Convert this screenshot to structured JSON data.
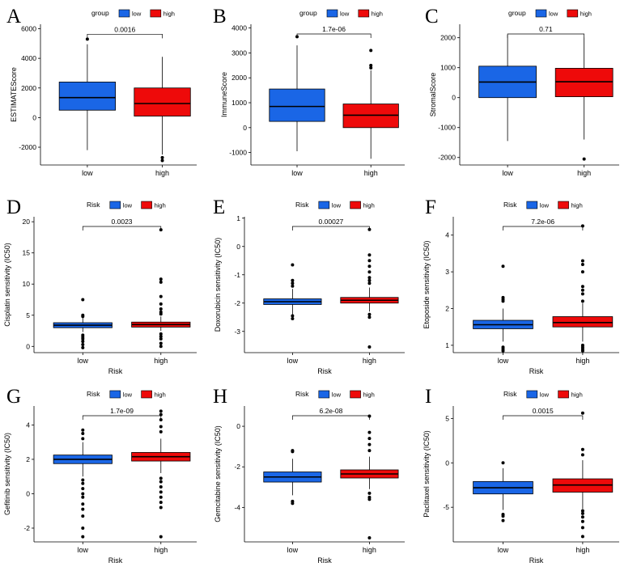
{
  "figure": {
    "colors": {
      "low": "#1a66e6",
      "high": "#ee0a0a",
      "axis": "#000000"
    },
    "legend_labels": [
      "low",
      "high"
    ],
    "categories": [
      "low",
      "high"
    ]
  },
  "chart_data": [
    {
      "type": "box",
      "panel": "A",
      "legend_title": "group",
      "ylabel": "ESTIMATEScore",
      "xlabel": "",
      "categories": [
        "low",
        "high"
      ],
      "yticks": [
        -2000,
        0,
        2000,
        4000,
        6000
      ],
      "ylim": [
        -3200,
        6300
      ],
      "p_value": "0.0016",
      "boxes": [
        {
          "name": "low",
          "q1": 500,
          "median": 1350,
          "q3": 2400,
          "whisker_low": -2200,
          "whisker_high": 4950,
          "outliers": [
            5300
          ]
        },
        {
          "name": "high",
          "q1": 100,
          "median": 950,
          "q3": 2000,
          "whisker_low": -2500,
          "whisker_high": 4100,
          "outliers": [
            -2700,
            -2900
          ]
        }
      ]
    },
    {
      "type": "box",
      "panel": "B",
      "legend_title": "group",
      "ylabel": "ImmuneScore",
      "xlabel": "",
      "categories": [
        "low",
        "high"
      ],
      "yticks": [
        -1000,
        0,
        1000,
        2000,
        3000,
        4000
      ],
      "ylim": [
        -1500,
        4150
      ],
      "p_value": "1.7e-06",
      "boxes": [
        {
          "name": "low",
          "q1": 250,
          "median": 850,
          "q3": 1550,
          "whisker_low": -950,
          "whisker_high": 3300,
          "outliers": [
            3650
          ]
        },
        {
          "name": "high",
          "q1": 0,
          "median": 500,
          "q3": 950,
          "whisker_low": -1250,
          "whisker_high": 2300,
          "outliers": [
            2400,
            2500,
            3100
          ]
        }
      ]
    },
    {
      "type": "box",
      "panel": "C",
      "legend_title": "group",
      "ylabel": "StromalScore",
      "xlabel": "",
      "categories": [
        "low",
        "high"
      ],
      "yticks": [
        -2000,
        -1000,
        0,
        1000,
        2000
      ],
      "ylim": [
        -2250,
        2450
      ],
      "p_value": "0.71",
      "boxes": [
        {
          "name": "low",
          "q1": 0,
          "median": 520,
          "q3": 1050,
          "whisker_low": -1450,
          "whisker_high": 2100,
          "outliers": []
        },
        {
          "name": "high",
          "q1": 30,
          "median": 530,
          "q3": 980,
          "whisker_low": -1400,
          "whisker_high": 2000,
          "outliers": [
            -2050
          ]
        }
      ]
    },
    {
      "type": "box",
      "panel": "D",
      "legend_title": "Risk",
      "ylabel": "Cisplatin sensitivity (IC50)",
      "xlabel": "Risk",
      "categories": [
        "low",
        "high"
      ],
      "yticks": [
        0,
        5,
        10,
        15,
        20
      ],
      "ylim": [
        -1,
        20.8
      ],
      "p_value": "0.0023",
      "boxes": [
        {
          "name": "low",
          "q1": 3.0,
          "median": 3.4,
          "q3": 3.8,
          "whisker_low": 2.3,
          "whisker_high": 4.6,
          "outliers": [
            7.5,
            5.0,
            4.8,
            1.8,
            1.5,
            1.2,
            0.8,
            0.3,
            -0.2
          ]
        },
        {
          "name": "high",
          "q1": 3.1,
          "median": 3.5,
          "q3": 3.9,
          "whisker_low": 2.5,
          "whisker_high": 4.8,
          "outliers": [
            18.7,
            10.8,
            10.3,
            8.0,
            6.8,
            6.0,
            5.5,
            5.2,
            2.0,
            1.6,
            1.2,
            0.5,
            0.0
          ]
        }
      ]
    },
    {
      "type": "box",
      "panel": "E",
      "legend_title": "Risk",
      "ylabel": "Doxorubicin sensitivity (IC50)",
      "xlabel": "Risk",
      "categories": [
        "low",
        "high"
      ],
      "yticks": [
        -3,
        -2,
        -1,
        0,
        1
      ],
      "ylim": [
        -3.75,
        1.05
      ],
      "p_value": "0.00027",
      "boxes": [
        {
          "name": "low",
          "q1": -2.05,
          "median": -1.95,
          "q3": -1.85,
          "whisker_low": -2.4,
          "whisker_high": -1.5,
          "outliers": [
            -0.65,
            -1.2,
            -1.3,
            -1.4,
            -2.45,
            -2.55
          ]
        },
        {
          "name": "high",
          "q1": -2.0,
          "median": -1.9,
          "q3": -1.8,
          "whisker_low": -2.3,
          "whisker_high": -1.45,
          "outliers": [
            0.6,
            -0.3,
            -0.5,
            -0.7,
            -0.9,
            -1.1,
            -1.2,
            -1.3,
            -2.4,
            -2.5,
            -3.55
          ]
        }
      ]
    },
    {
      "type": "box",
      "panel": "F",
      "legend_title": "Risk",
      "ylabel": "Etoposide sensitivity (IC50)",
      "xlabel": "Risk",
      "categories": [
        "low",
        "high"
      ],
      "yticks": [
        1,
        2,
        3,
        4
      ],
      "ylim": [
        0.8,
        4.5
      ],
      "p_value": "7.2e-06",
      "boxes": [
        {
          "name": "low",
          "q1": 1.45,
          "median": 1.56,
          "q3": 1.68,
          "whisker_low": 1.1,
          "whisker_high": 2.0,
          "outliers": [
            3.15,
            2.3,
            2.25,
            2.2,
            0.95,
            0.9,
            0.85
          ]
        },
        {
          "name": "high",
          "q1": 1.5,
          "median": 1.62,
          "q3": 1.78,
          "whisker_low": 1.1,
          "whisker_high": 2.15,
          "outliers": [
            4.25,
            3.3,
            3.2,
            3.0,
            2.6,
            2.5,
            2.4,
            2.2,
            1.0,
            0.95,
            0.9,
            0.85
          ]
        }
      ]
    },
    {
      "type": "box",
      "panel": "G",
      "legend_title": "Risk",
      "ylabel": "Gefitinib sensitivity (IC50)",
      "xlabel": "Risk",
      "categories": [
        "low",
        "high"
      ],
      "yticks": [
        -2,
        0,
        2,
        4
      ],
      "ylim": [
        -2.8,
        5.1
      ],
      "p_value": "1.7e-09",
      "boxes": [
        {
          "name": "low",
          "q1": 1.75,
          "median": 2.0,
          "q3": 2.25,
          "whisker_low": 1.0,
          "whisker_high": 3.0,
          "outliers": [
            3.7,
            3.5,
            3.2,
            0.8,
            0.6,
            0.3,
            0.0,
            -0.2,
            -0.6,
            -0.9,
            -1.3,
            -2.0,
            -2.5
          ]
        },
        {
          "name": "high",
          "q1": 1.9,
          "median": 2.15,
          "q3": 2.4,
          "whisker_low": 1.2,
          "whisker_high": 3.2,
          "outliers": [
            4.8,
            4.6,
            4.3,
            3.9,
            3.6,
            0.9,
            0.7,
            0.4,
            0.1,
            -0.2,
            -0.5,
            -0.8,
            -2.5
          ]
        }
      ]
    },
    {
      "type": "box",
      "panel": "H",
      "legend_title": "Risk",
      "ylabel": "Gemcitabine sensitivity (IC50)",
      "xlabel": "Risk",
      "categories": [
        "low",
        "high"
      ],
      "yticks": [
        -4,
        -2,
        0
      ],
      "ylim": [
        -5.7,
        1.0
      ],
      "p_value": "6.2e-08",
      "boxes": [
        {
          "name": "low",
          "q1": -2.75,
          "median": -2.5,
          "q3": -2.25,
          "whisker_low": -3.4,
          "whisker_high": -1.6,
          "outliers": [
            -1.2,
            -1.25,
            -3.7,
            -3.8
          ]
        },
        {
          "name": "high",
          "q1": -2.55,
          "median": -2.35,
          "q3": -2.15,
          "whisker_low": -3.1,
          "whisker_high": -1.5,
          "outliers": [
            0.5,
            -0.3,
            -0.6,
            -0.9,
            -1.2,
            -3.3,
            -3.5,
            -3.6,
            -5.5
          ]
        }
      ]
    },
    {
      "type": "box",
      "panel": "I",
      "legend_title": "Risk",
      "ylabel": "Paclitaxel sensitivity (IC50)",
      "xlabel": "Risk",
      "categories": [
        "low",
        "high"
      ],
      "yticks": [
        -5,
        0,
        5
      ],
      "ylim": [
        -8.9,
        6.4
      ],
      "p_value": "0.0015",
      "boxes": [
        {
          "name": "low",
          "q1": -3.5,
          "median": -2.8,
          "q3": -2.1,
          "whisker_low": -5.3,
          "whisker_high": -0.6,
          "outliers": [
            0.0,
            -5.8,
            -6.0,
            -6.5
          ]
        },
        {
          "name": "high",
          "q1": -3.3,
          "median": -2.5,
          "q3": -1.8,
          "whisker_low": -5.2,
          "whisker_high": 0.3,
          "outliers": [
            5.6,
            1.5,
            0.9,
            -5.4,
            -5.7,
            -6.1,
            -6.6,
            -7.3,
            -8.3
          ]
        }
      ]
    }
  ]
}
